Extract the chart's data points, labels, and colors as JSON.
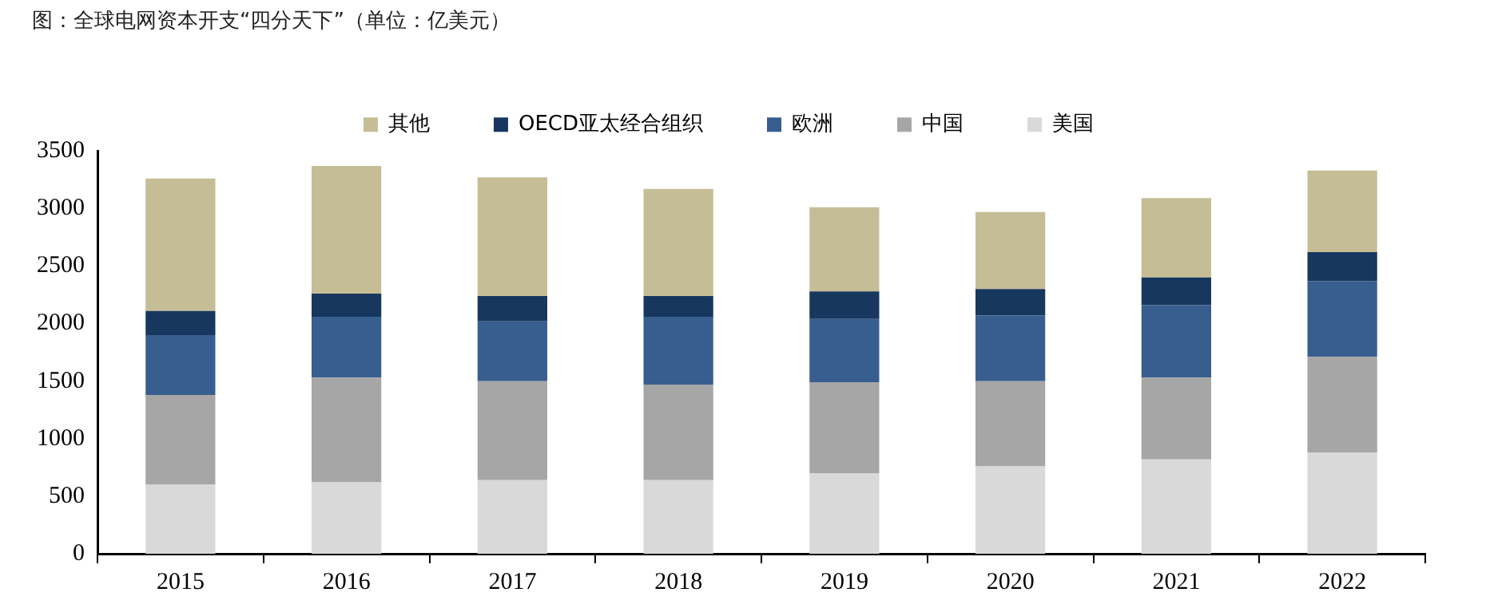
{
  "chart_data": {
    "type": "bar",
    "title": "图：全球电网资本开支“四分天下”（单位：亿美元）",
    "categories": [
      "2015",
      "2016",
      "2017",
      "2018",
      "2019",
      "2020",
      "2021",
      "2022"
    ],
    "stacked": true,
    "series": [
      {
        "name": "美国",
        "color": "#d9d9d9",
        "values": [
          600,
          620,
          640,
          640,
          700,
          760,
          820,
          880
        ]
      },
      {
        "name": "中国",
        "color": "#a6a6a6",
        "values": [
          780,
          910,
          860,
          830,
          790,
          740,
          710,
          830
        ]
      },
      {
        "name": "欧洲",
        "color": "#375e8f",
        "values": [
          520,
          530,
          520,
          590,
          550,
          570,
          630,
          660
        ]
      },
      {
        "name": "OECD亚太经合组织",
        "color": "#17375e",
        "values": [
          210,
          200,
          220,
          180,
          240,
          230,
          240,
          250
        ]
      },
      {
        "name": "其他",
        "color": "#c5bd95",
        "values": [
          1150,
          1110,
          1030,
          930,
          730,
          670,
          690,
          710
        ]
      }
    ],
    "ylim": [
      0,
      3500
    ],
    "yticks": [
      0,
      500,
      1000,
      1500,
      2000,
      2500,
      3000,
      3500
    ],
    "grid": false,
    "legend": "top"
  }
}
